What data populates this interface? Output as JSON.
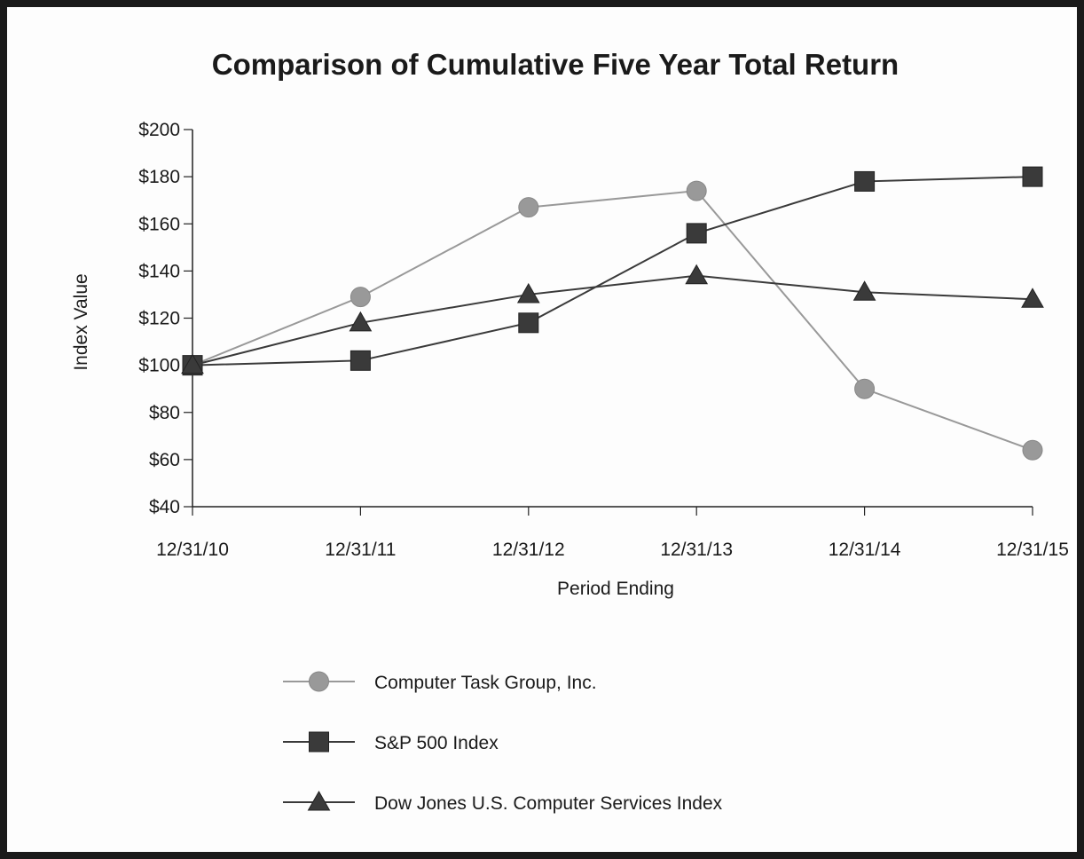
{
  "chart_data": {
    "type": "line",
    "title": "Comparison of Cumulative Five Year Total Return",
    "xlabel": "Period Ending",
    "ylabel": "Index Value",
    "categories": [
      "12/31/10",
      "12/31/11",
      "12/31/12",
      "12/31/13",
      "12/31/14",
      "12/31/15"
    ],
    "y_ticks": [
      "$200",
      "$180",
      "$160",
      "$140",
      "$120",
      "$100",
      "$80",
      "$60",
      "$40"
    ],
    "ylim": [
      40,
      200
    ],
    "grid": false,
    "legend_position": "bottom",
    "series": [
      {
        "name": "Computer Task Group, Inc.",
        "values": [
          100,
          129,
          167,
          174,
          90,
          64
        ],
        "marker": "circle",
        "color": "#999999"
      },
      {
        "name": "S&P 500 Index",
        "values": [
          100,
          102,
          118,
          156,
          178,
          180
        ],
        "marker": "square",
        "color": "#3a3a3a"
      },
      {
        "name": "Dow Jones U.S. Computer Services Index",
        "values": [
          100,
          118,
          130,
          138,
          131,
          128
        ],
        "marker": "triangle",
        "color": "#3a3a3a"
      }
    ]
  }
}
